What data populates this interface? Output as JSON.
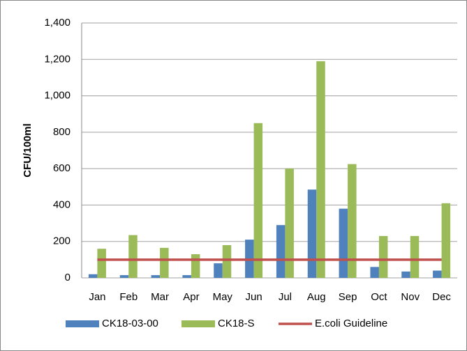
{
  "chart_data": {
    "type": "bar",
    "y_label": "CFU/100ml",
    "categories": [
      "Jan",
      "Feb",
      "Mar",
      "Apr",
      "May",
      "Jun",
      "Jul",
      "Aug",
      "Sep",
      "Oct",
      "Nov",
      "Dec"
    ],
    "series": [
      {
        "name": "CK18-03-00",
        "color": "#4f81bd",
        "type": "bar",
        "values": [
          20,
          15,
          15,
          15,
          80,
          210,
          290,
          485,
          380,
          60,
          35,
          40
        ]
      },
      {
        "name": "CK18-S",
        "color": "#9bbb59",
        "type": "bar",
        "values": [
          160,
          235,
          165,
          130,
          180,
          850,
          600,
          1190,
          625,
          230,
          230,
          410
        ]
      },
      {
        "name": "E.coli Guideline",
        "color": "#c0504d",
        "type": "line",
        "values": [
          100,
          100,
          100,
          100,
          100,
          100,
          100,
          100,
          100,
          100,
          100,
          100
        ]
      }
    ],
    "ylim": [
      0,
      1400
    ],
    "yticks": [
      0,
      200,
      400,
      600,
      800,
      {
        "value": 1000,
        "label": "1,000"
      },
      {
        "value": 1200,
        "label": "1,200"
      },
      {
        "value": 1400,
        "label": "1,400"
      }
    ],
    "grid": true
  }
}
